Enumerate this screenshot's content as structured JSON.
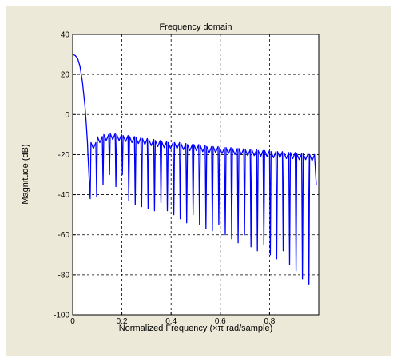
{
  "chart_data": {
    "type": "line",
    "title": "Frequency domain",
    "xlabel": "Normalized Frequency  (×π rad/sample)",
    "ylabel": "Magnitude (dB)",
    "xlim": [
      0,
      1
    ],
    "ylim": [
      -100,
      40
    ],
    "xticks": [
      0,
      0.2,
      0.4,
      0.6,
      0.8
    ],
    "xtick_labels": [
      "0",
      "0.2",
      "0.4",
      "0.6",
      "0.8"
    ],
    "yticks": [
      40,
      20,
      0,
      -20,
      -40,
      -60,
      -80,
      -100
    ],
    "ytick_labels": [
      "40",
      "20",
      "0",
      "-20",
      "-40",
      "-60",
      "-80",
      "-100"
    ],
    "grid": true,
    "series": [
      {
        "color": "#0000ff",
        "main_lobe": {
          "x": [
            0,
            0.01,
            0.02,
            0.03,
            0.04,
            0.05,
            0.055,
            0.06,
            0.062
          ],
          "y": [
            30,
            29.5,
            28,
            24,
            16,
            4,
            -4,
            -14,
            -20
          ]
        },
        "sidelobe_peaks": [
          -17,
          -14,
          -13,
          -12.5,
          -13,
          -13.5,
          -14,
          -14.5,
          -15,
          -15.5,
          -16,
          -16.5,
          -17,
          -17,
          -17.5,
          -18,
          -18,
          -18.5,
          -19,
          -19,
          -19.5,
          -19.5,
          -20,
          -20,
          -20.5,
          -20.5,
          -21,
          -21,
          -21.5,
          -21.5,
          -22,
          -22,
          -22.5,
          -22.5,
          -23,
          -23
        ],
        "null_depths": [
          -42,
          -41,
          -35,
          -30,
          -36,
          -30,
          -43,
          -45,
          -46,
          -47,
          -48,
          -44,
          -48,
          -50,
          -52,
          -54,
          -50,
          -55,
          -57,
          -58,
          -55,
          -60,
          -62,
          -64,
          -60,
          -66,
          -68,
          -65,
          -70,
          -72,
          -68,
          -75,
          -78,
          -82,
          -85
        ],
        "x_end": 0.99,
        "y_end": -35
      }
    ]
  }
}
